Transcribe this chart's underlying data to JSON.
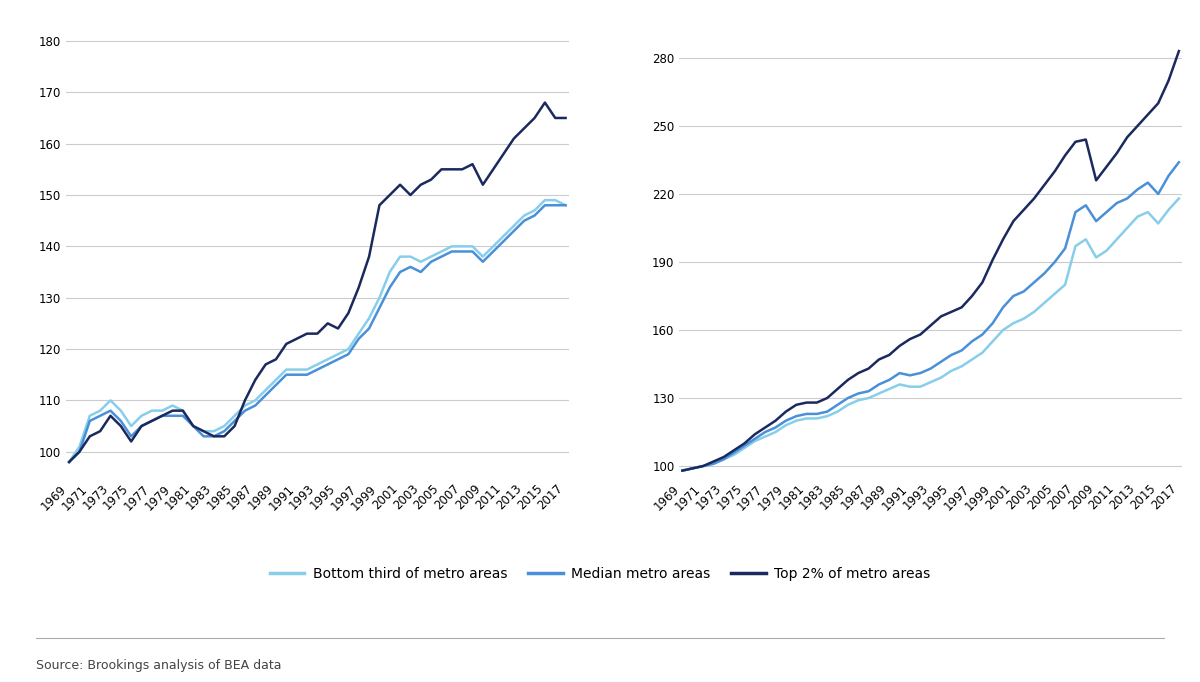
{
  "years": [
    1969,
    1970,
    1971,
    1972,
    1973,
    1974,
    1975,
    1976,
    1977,
    1978,
    1979,
    1980,
    1981,
    1982,
    1983,
    1984,
    1985,
    1986,
    1987,
    1988,
    1989,
    1990,
    1991,
    1992,
    1993,
    1994,
    1995,
    1996,
    1997,
    1998,
    1999,
    2000,
    2001,
    2002,
    2003,
    2004,
    2005,
    2006,
    2007,
    2008,
    2009,
    2010,
    2011,
    2012,
    2013,
    2014,
    2015,
    2016,
    2017
  ],
  "left_bottom": [
    98,
    101,
    107,
    108,
    110,
    108,
    105,
    107,
    108,
    108,
    109,
    108,
    105,
    104,
    104,
    105,
    107,
    109,
    110,
    112,
    114,
    116,
    116,
    116,
    117,
    118,
    119,
    120,
    123,
    126,
    130,
    135,
    138,
    138,
    137,
    138,
    139,
    140,
    140,
    140,
    138,
    140,
    142,
    144,
    146,
    147,
    149,
    149,
    148
  ],
  "left_median": [
    98,
    100,
    106,
    107,
    108,
    106,
    103,
    105,
    106,
    107,
    107,
    107,
    105,
    103,
    103,
    104,
    106,
    108,
    109,
    111,
    113,
    115,
    115,
    115,
    116,
    117,
    118,
    119,
    122,
    124,
    128,
    132,
    135,
    136,
    135,
    137,
    138,
    139,
    139,
    139,
    137,
    139,
    141,
    143,
    145,
    146,
    148,
    148,
    148
  ],
  "left_top": [
    98,
    100,
    103,
    104,
    107,
    105,
    102,
    105,
    106,
    107,
    108,
    108,
    105,
    104,
    103,
    103,
    105,
    110,
    114,
    117,
    118,
    121,
    122,
    123,
    123,
    125,
    124,
    127,
    132,
    138,
    148,
    150,
    152,
    150,
    152,
    153,
    155,
    155,
    155,
    156,
    152,
    155,
    158,
    161,
    163,
    165,
    168,
    165,
    165
  ],
  "right_bottom": [
    98,
    99,
    100,
    101,
    103,
    105,
    108,
    111,
    113,
    115,
    118,
    120,
    121,
    121,
    122,
    124,
    127,
    129,
    130,
    132,
    134,
    136,
    135,
    135,
    137,
    139,
    142,
    144,
    147,
    150,
    155,
    160,
    163,
    165,
    168,
    172,
    176,
    180,
    197,
    200,
    192,
    195,
    200,
    205,
    210,
    212,
    207,
    213,
    218
  ],
  "right_median": [
    98,
    99,
    100,
    101,
    103,
    106,
    109,
    112,
    115,
    117,
    120,
    122,
    123,
    123,
    124,
    127,
    130,
    132,
    133,
    136,
    138,
    141,
    140,
    141,
    143,
    146,
    149,
    151,
    155,
    158,
    163,
    170,
    175,
    177,
    181,
    185,
    190,
    196,
    212,
    215,
    208,
    212,
    216,
    218,
    222,
    225,
    220,
    228,
    234
  ],
  "right_top": [
    98,
    99,
    100,
    102,
    104,
    107,
    110,
    114,
    117,
    120,
    124,
    127,
    128,
    128,
    130,
    134,
    138,
    141,
    143,
    147,
    149,
    153,
    156,
    158,
    162,
    166,
    168,
    170,
    175,
    181,
    191,
    200,
    208,
    213,
    218,
    224,
    230,
    237,
    243,
    244,
    226,
    232,
    238,
    245,
    250,
    255,
    260,
    270,
    283
  ],
  "left_ylim": [
    95,
    182
  ],
  "left_yticks": [
    100,
    110,
    120,
    130,
    140,
    150,
    160,
    170,
    180
  ],
  "right_ylim": [
    95,
    292
  ],
  "right_yticks": [
    100,
    130,
    160,
    190,
    220,
    250,
    280
  ],
  "color_bottom": "#87CEEB",
  "color_median": "#4A90D9",
  "color_top": "#1B2A5E",
  "legend_labels": [
    "Bottom third of metro areas",
    "Median metro areas",
    "Top 2% of metro areas"
  ],
  "source_text": "Source: Brookings analysis of BEA data",
  "bg_color": "#FFFFFF",
  "grid_color": "#CCCCCC",
  "tick_fontsize": 8.5,
  "source_fontsize": 9,
  "legend_fontsize": 10
}
